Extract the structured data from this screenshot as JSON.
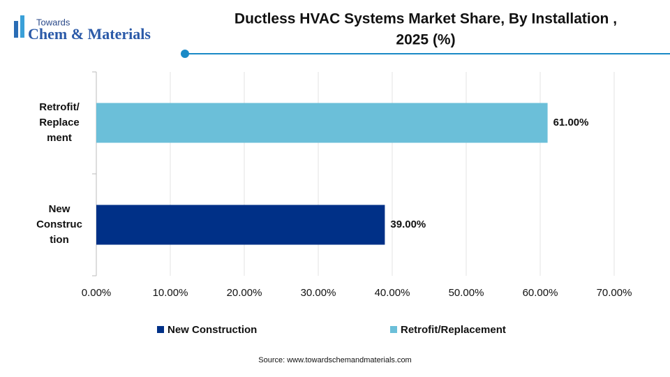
{
  "logo": {
    "top": "Towards",
    "main": "Chem & Materials"
  },
  "chart_data": {
    "type": "hbar",
    "title": [
      "Ductless HVAC Systems Market Share, By Installation ,",
      "2025 (%)"
    ],
    "categories": [
      [
        "Retrofit/",
        "Replace",
        "ment"
      ],
      [
        "New",
        "Construc",
        "tion"
      ]
    ],
    "series": [
      {
        "name": "New Construction",
        "color": "#003087",
        "values": [
          null,
          39
        ],
        "value_labels": [
          null,
          "39.00%"
        ]
      },
      {
        "name": "Retrofit/Replacement",
        "color": "#6bbfd9",
        "values": [
          61,
          null
        ],
        "value_labels": [
          "61.00%",
          null
        ]
      }
    ],
    "xlim": [
      0,
      70
    ],
    "xticks": [
      {
        "value": 0,
        "label": "0.00%"
      },
      {
        "value": 10,
        "label": "10.00%"
      },
      {
        "value": 20,
        "label": "20.00%"
      },
      {
        "value": 30,
        "label": "30.00%"
      },
      {
        "value": 40,
        "label": "40.00%"
      },
      {
        "value": 50,
        "label": "50.00%"
      },
      {
        "value": 60,
        "label": "60.00%"
      },
      {
        "value": 70,
        "label": "70.00%"
      }
    ],
    "grid": true,
    "legend": "bottom",
    "source": "Source: www.towardschemandmaterials.com"
  }
}
